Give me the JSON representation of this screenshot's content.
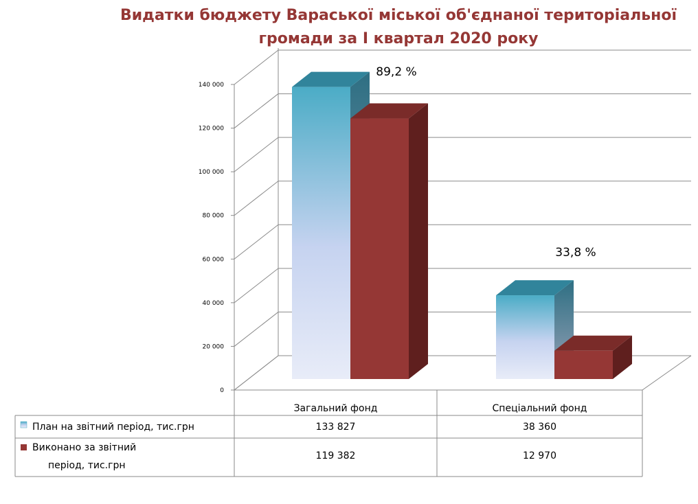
{
  "title_lines": [
    "Видатки бюджету Вараської міської об'єднаної територіальної",
    "громади за І квартал 2020 року"
  ],
  "colors": {
    "title": "#953735",
    "plan_top": "#4bacc6",
    "plan_bottom": "#e6ebf8",
    "actual": "#953735"
  },
  "chart_data": {
    "type": "bar",
    "title": "Видатки бюджету Вараської міської об'єднаної територіальної громади за І квартал 2020 року",
    "categories": [
      "Загальний фонд",
      "Спеціальний фонд"
    ],
    "series": [
      {
        "name": "План на звітний період, тис.грн",
        "values": [
          133827,
          38360
        ],
        "labels": [
          "133 827",
          "38 360"
        ]
      },
      {
        "name": "Виконано за звітний період, тис.грн",
        "values": [
          119382,
          12970
        ],
        "labels": [
          "119 382",
          "12 970"
        ]
      }
    ],
    "annotations": [
      "89,2 %",
      "33,8 %"
    ],
    "ylim": [
      0,
      140000
    ],
    "yticks": [
      0,
      20000,
      40000,
      60000,
      80000,
      100000,
      120000,
      140000
    ],
    "ytick_labels": [
      "0",
      "20 000",
      "40 000",
      "60 000",
      "80 000",
      "100 000",
      "120 000",
      "140 000"
    ],
    "grid": true,
    "legend": "data-table-below",
    "row_labels": [
      [
        "План на звітний період, тис.грн"
      ],
      [
        "Виконано за звітний",
        "період, тис.грн"
      ]
    ]
  }
}
